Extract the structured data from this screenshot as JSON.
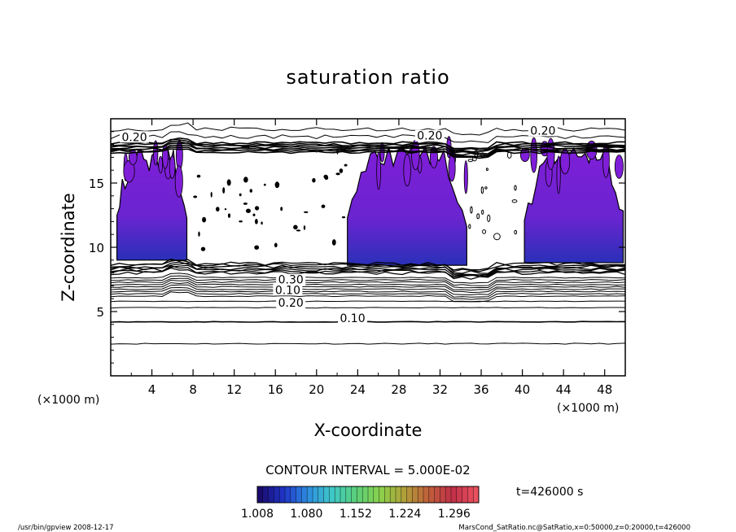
{
  "chart_data": {
    "type": "contour",
    "title": "saturation ratio",
    "xlabel": "X-coordinate",
    "ylabel": "Z-coordinate",
    "x_unit_left": "(×1000 m)",
    "x_unit_right": "(×1000 m)",
    "xlim": [
      0,
      50
    ],
    "ylim": [
      0,
      20
    ],
    "x_ticks": [
      4,
      8,
      12,
      16,
      20,
      24,
      28,
      32,
      36,
      40,
      44,
      48
    ],
    "y_ticks": [
      5,
      10,
      15
    ],
    "contour_labels": [
      {
        "text": "0.20",
        "x": 2.3,
        "z": 18.4
      },
      {
        "text": "0.20",
        "x": 31.0,
        "z": 18.5
      },
      {
        "text": "0.20",
        "x": 42.0,
        "z": 18.9
      },
      {
        "text": "0.10",
        "x": 23.5,
        "z": 4.3
      },
      {
        "text": "0.20",
        "x": 17.5,
        "z": 5.5
      },
      {
        "text": "0.10",
        "x": 17.2,
        "z": 6.5
      },
      {
        "text": "0.30",
        "x": 17.5,
        "z": 7.3
      }
    ],
    "filled_regions": [
      {
        "x": [
          0.6,
          7.4
        ],
        "z_base": 9.0,
        "z_top": 17.6
      },
      {
        "x": [
          23.0,
          34.6
        ],
        "z_base": 8.6,
        "z_top": 17.8
      },
      {
        "x": [
          40.2,
          49.8
        ],
        "z_base": 8.8,
        "z_top": 17.8
      }
    ],
    "contour_interval_label": "CONTOUR INTERVAL = 5.000E-02",
    "colorbar": {
      "min": 1.008,
      "max": 1.332,
      "tick_labels": [
        "1.008",
        "1.080",
        "1.152",
        "1.224",
        "1.296"
      ],
      "colors": [
        "#1a0b6e",
        "#1f35c8",
        "#2e8ee0",
        "#3fc8c8",
        "#5ad07a",
        "#8ad24c",
        "#b0a03a",
        "#c0603a",
        "#c03048",
        "#e85060"
      ]
    },
    "time_label": "t=426000 s"
  },
  "footer": {
    "left": "/usr/bin/gpview   2008-12-17",
    "right": "MarsCond_SatRatio.nc@SatRatio,x=0:50000,z=0:20000,t=426000"
  },
  "colors": {
    "fill_main": "#7f1ed8",
    "fill_deep": "#2a30b8"
  }
}
